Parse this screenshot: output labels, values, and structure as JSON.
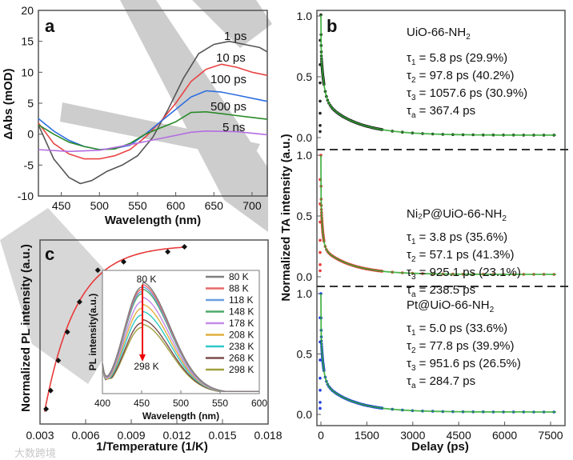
{
  "chart_data": [
    {
      "id": "a",
      "type": "line",
      "panel_label": "a",
      "xlabel": "Wavelength (nm)",
      "ylabel": "ΔAbs (mOD)",
      "xlim": [
        420,
        720
      ],
      "ylim": [
        -10,
        20
      ],
      "xticks": [
        450,
        500,
        550,
        600,
        650,
        700
      ],
      "yticks": [
        -10,
        -5,
        0,
        5,
        10,
        15,
        20
      ],
      "series": [
        {
          "name": "1 ps",
          "color": "#555555",
          "x": [
            420,
            440,
            460,
            475,
            490,
            510,
            530,
            550,
            570,
            590,
            610,
            630,
            650,
            670,
            690,
            710,
            720
          ],
          "y": [
            1.5,
            -4,
            -7,
            -8,
            -7.5,
            -6,
            -5,
            -3.5,
            -0.5,
            4,
            9,
            13,
            14.5,
            15,
            14.5,
            14,
            13.3
          ]
        },
        {
          "name": "10 ps",
          "color": "#e84545",
          "x": [
            420,
            440,
            460,
            480,
            500,
            520,
            540,
            560,
            580,
            600,
            620,
            640,
            660,
            680,
            700,
            720
          ],
          "y": [
            1.8,
            -1.5,
            -3.2,
            -4,
            -4,
            -3.5,
            -2.5,
            -0.5,
            2,
            5,
            8.5,
            10.5,
            11.3,
            10.8,
            10,
            9.5
          ]
        },
        {
          "name": "100 ps",
          "color": "#2f6fe0",
          "x": [
            420,
            440,
            460,
            480,
            500,
            520,
            540,
            560,
            580,
            600,
            620,
            640,
            660,
            680,
            700,
            720
          ],
          "y": [
            2.5,
            0.5,
            -1,
            -2,
            -2.5,
            -2.3,
            -1.8,
            0,
            2,
            4,
            6,
            7,
            6.8,
            6.3,
            5.8,
            5.3
          ]
        },
        {
          "name": "500 ps",
          "color": "#2a8a2a",
          "x": [
            420,
            440,
            460,
            480,
            500,
            520,
            540,
            560,
            580,
            600,
            620,
            640,
            660,
            680,
            700,
            720
          ],
          "y": [
            1.5,
            0,
            -1.3,
            -2,
            -2.5,
            -2.4,
            -1.5,
            0,
            1,
            2,
            3.5,
            3.6,
            3.3,
            3,
            2.7,
            2.4
          ]
        },
        {
          "name": "5 ns",
          "color": "#b36ee0",
          "x": [
            420,
            460,
            500,
            540,
            580,
            620,
            640,
            680,
            720
          ],
          "y": [
            -2.5,
            -2.8,
            -2.6,
            -1.7,
            -0.7,
            0.3,
            0.5,
            0.4,
            -0.1
          ]
        }
      ]
    },
    {
      "id": "b",
      "type": "scatter",
      "panel_label": "b",
      "xlabel": "Delay (ps)",
      "ylabel": "Normalized TA intensity (a.u.)",
      "xlim": [
        -100,
        7800
      ],
      "xticks": [
        0,
        1500,
        3000,
        4500,
        6000,
        7500
      ],
      "yticks": [
        0.0,
        0.5,
        1.0
      ],
      "fit_color": "#2ea82e",
      "panels": [
        {
          "title": "UiO-66-NH",
          "title_sub": "2",
          "marker_color": "#222222",
          "taus": [
            5.8,
            97.8,
            1057.6
          ],
          "fractions": [
            29.9,
            40.2,
            30.9
          ],
          "tau_avg": 367.4,
          "lines": [
            {
              "sym": "τ",
              "sub": "1",
              "text": " = 5.8 ps (29.9%)"
            },
            {
              "sym": "τ",
              "sub": "2",
              "text": " = 97.8 ps (40.2%)"
            },
            {
              "sym": "τ",
              "sub": "3",
              "text": " = 1057.6 ps (30.9%)"
            },
            {
              "sym": "τ",
              "sub": "a",
              "text": " = 367.4 ps"
            }
          ]
        },
        {
          "title": "Ni₂P@UiO-66-NH",
          "title_sub": "2",
          "marker_color": "#e83a3a",
          "taus": [
            3.8,
            57.1,
            925.1
          ],
          "fractions": [
            35.6,
            41.3,
            23.1
          ],
          "tau_avg": 238.5,
          "lines": [
            {
              "sym": "τ",
              "sub": "1",
              "text": " = 3.8 ps (35.6%)"
            },
            {
              "sym": "τ",
              "sub": "2",
              "text": " = 57.1 ps (41.3%)"
            },
            {
              "sym": "τ",
              "sub": "3",
              "text": " = 925.1 ps (23.1%)"
            },
            {
              "sym": "τ",
              "sub": "a",
              "text": " = 238.5 ps"
            }
          ]
        },
        {
          "title": "Pt@UiO-66-NH",
          "title_sub": "2",
          "marker_color": "#2040e0",
          "taus": [
            5.0,
            77.8,
            951.6
          ],
          "fractions": [
            33.6,
            39.9,
            26.5
          ],
          "tau_avg": 284.7,
          "lines": [
            {
              "sym": "τ",
              "sub": "1",
              "text": " = 5.0 ps (33.6%)"
            },
            {
              "sym": "τ",
              "sub": "2",
              "text": " = 77.8 ps (39.9%)"
            },
            {
              "sym": "τ",
              "sub": "3",
              "text": " = 951.6 ps (26.5%)"
            },
            {
              "sym": "τ",
              "sub": "a",
              "text": " = 284.7 ps"
            }
          ]
        }
      ]
    },
    {
      "id": "c",
      "type": "scatter",
      "panel_label": "c",
      "xlabel": "1/Temperature (1/K)",
      "ylabel": "Normalized PL intensity (a.u.)",
      "xlim": [
        0.003,
        0.018
      ],
      "ylim": [
        0,
        1.1
      ],
      "xticks": [
        "0.003",
        "0.006",
        "0.009",
        "0.012",
        "0.015",
        "0.018"
      ],
      "fit_color": "#e83a3a",
      "x": [
        0.0034,
        0.0037,
        0.0042,
        0.0048,
        0.0056,
        0.0068,
        0.0085,
        0.0114,
        0.0125
      ],
      "y": [
        0.09,
        0.2,
        0.38,
        0.55,
        0.73,
        0.92,
        0.97,
        1.03,
        1.06
      ]
    },
    {
      "id": "c-inset",
      "type": "line",
      "xlabel": "Wavelength (nm)",
      "ylabel": "PL intensity(a.u.)",
      "xlim": [
        400,
        600
      ],
      "xticks": [
        400,
        450,
        500,
        550,
        600
      ],
      "arrow_top": "80 K",
      "arrow_bottom": "298 K",
      "series": [
        {
          "name": "80 K",
          "color": "#7f7f7f",
          "peak": 0.95
        },
        {
          "name": "88 K",
          "color": "#e86a6a",
          "peak": 0.93
        },
        {
          "name": "118 K",
          "color": "#6a9ee0",
          "peak": 0.91
        },
        {
          "name": "148 K",
          "color": "#4fa86a",
          "peak": 0.89
        },
        {
          "name": "178 K",
          "color": "#c48be8",
          "peak": 0.82
        },
        {
          "name": "208 K",
          "color": "#e0b040",
          "peak": 0.76
        },
        {
          "name": "238 K",
          "color": "#30c8c8",
          "peak": 0.7
        },
        {
          "name": "268 K",
          "color": "#7a4a4a",
          "peak": 0.63
        },
        {
          "name": "298 K",
          "color": "#a0a040",
          "peak": 0.59
        }
      ]
    }
  ],
  "watermark": "大数跨境"
}
